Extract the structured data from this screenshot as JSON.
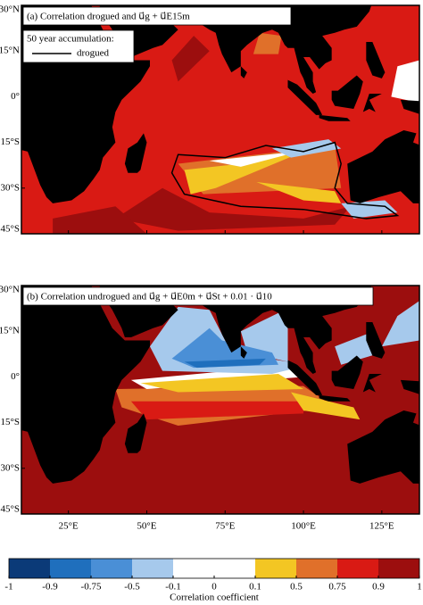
{
  "panels": [
    {
      "title": "(a) Correlation drogued and u⃗g + u⃗E15m",
      "legend": {
        "title": "50 year accumulation:",
        "entry": "drogued"
      }
    },
    {
      "title": "(b) Correlation undrogued and u⃗g + u⃗E0m + u⃗St + 0.01 · u⃗10"
    }
  ],
  "axes": {
    "xlim": [
      10,
      137
    ],
    "ylim": [
      -45,
      30
    ],
    "xticks": [
      {
        "value": 25,
        "label": "25°E"
      },
      {
        "value": 50,
        "label": "50°E"
      },
      {
        "value": 75,
        "label": "75°E"
      },
      {
        "value": 100,
        "label": "100°E"
      },
      {
        "value": 125,
        "label": "125°E"
      }
    ],
    "yticks": [
      {
        "value": 30,
        "label": "30°N"
      },
      {
        "value": 15,
        "label": "15°N"
      },
      {
        "value": 0,
        "label": "0°"
      },
      {
        "value": -15,
        "label": "15°S"
      },
      {
        "value": -30,
        "label": "30°S"
      },
      {
        "value": -45,
        "label": "45°S"
      }
    ]
  },
  "colorbar": {
    "label": "Correlation coefficient",
    "ticks": [
      -1,
      -0.9,
      -0.75,
      -0.5,
      -0.1,
      0,
      0.1,
      0.5,
      0.75,
      0.9,
      1
    ],
    "colors": [
      "#0b3a78",
      "#1f6fbd",
      "#4a8fd6",
      "#a6c9ec",
      "#ffffff",
      "#ffffff",
      "#f3c623",
      "#e0702a",
      "#d91a14",
      "#9c0e0e"
    ]
  }
}
